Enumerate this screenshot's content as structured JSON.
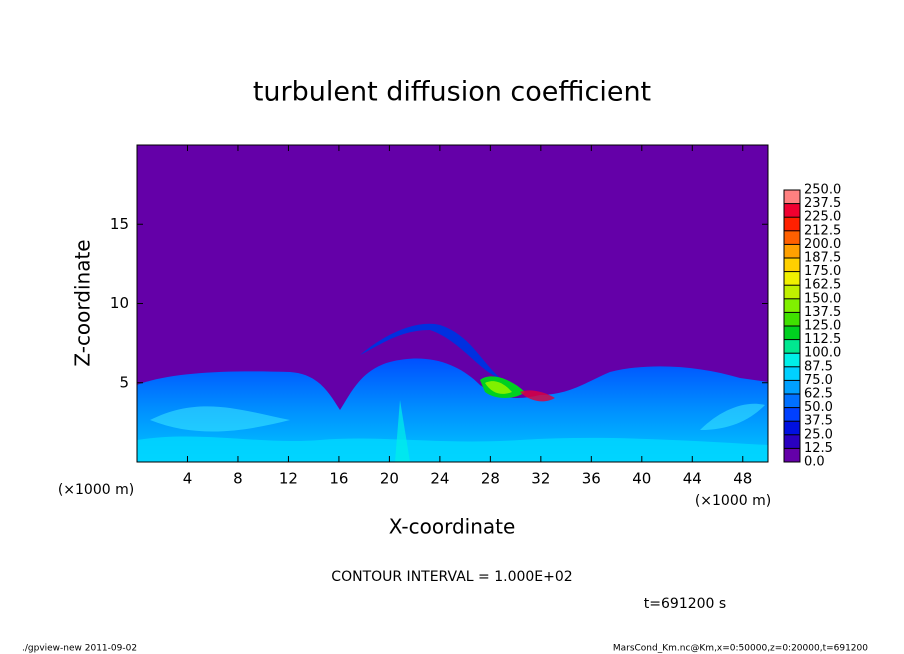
{
  "chart_data": {
    "type": "contour",
    "title": "turbulent diffusion coefficient",
    "x_label": "X-coordinate",
    "y_label": "Z-coordinate",
    "x_unit_left": "(×1000 m)",
    "x_unit_right": "(×1000 m)",
    "xlim": [
      0,
      50
    ],
    "ylim": [
      0,
      20
    ],
    "xticks": [
      4,
      8,
      12,
      16,
      20,
      24,
      28,
      32,
      36,
      40,
      44,
      48
    ],
    "yticks": [
      5,
      10,
      15
    ],
    "levels": [
      {
        "value": 0,
        "label": "0.0"
      },
      {
        "value": 12.5,
        "label": "12.5"
      },
      {
        "value": 25,
        "label": "25.0"
      },
      {
        "value": 37.5,
        "label": "37.5"
      },
      {
        "value": 50,
        "label": "50.0"
      },
      {
        "value": 62.5,
        "label": "62.5"
      },
      {
        "value": 75,
        "label": "75.0"
      },
      {
        "value": 87.5,
        "label": "87.5"
      },
      {
        "value": 100,
        "label": "100.0"
      },
      {
        "value": 112.5,
        "label": "112.5"
      },
      {
        "value": 125,
        "label": "125.0"
      },
      {
        "value": 137.5,
        "label": "137.5"
      },
      {
        "value": 150,
        "label": "150.0"
      },
      {
        "value": 162.5,
        "label": "162.5"
      },
      {
        "value": 175,
        "label": "175.0"
      },
      {
        "value": 187.5,
        "label": "187.5"
      },
      {
        "value": 200,
        "label": "200.0"
      },
      {
        "value": 212.5,
        "label": "212.5"
      },
      {
        "value": 225,
        "label": "225.0"
      },
      {
        "value": 237.5,
        "label": "237.5"
      },
      {
        "value": 250,
        "label": "250.0"
      }
    ],
    "colors": [
      "#6400a8",
      "#2a00c0",
      "#0010e0",
      "#0040ff",
      "#0070ff",
      "#00a0ff",
      "#00d0ff",
      "#00f0e8",
      "#00e890",
      "#00d020",
      "#40e000",
      "#80f000",
      "#c0f000",
      "#f0f000",
      "#ffd000",
      "#ffa000",
      "#ff6000",
      "#ff2000",
      "#f00030",
      "#ff8080"
    ],
    "contour_interval": "CONTOUR INTERVAL = 1.000E+02",
    "time_label": "t=691200 s",
    "footer_left": "./gpview-new  2011-09-02",
    "footer_right": "MarsCond_Km.nc@Km,x=0:50000,z=0:20000,t=691200"
  }
}
